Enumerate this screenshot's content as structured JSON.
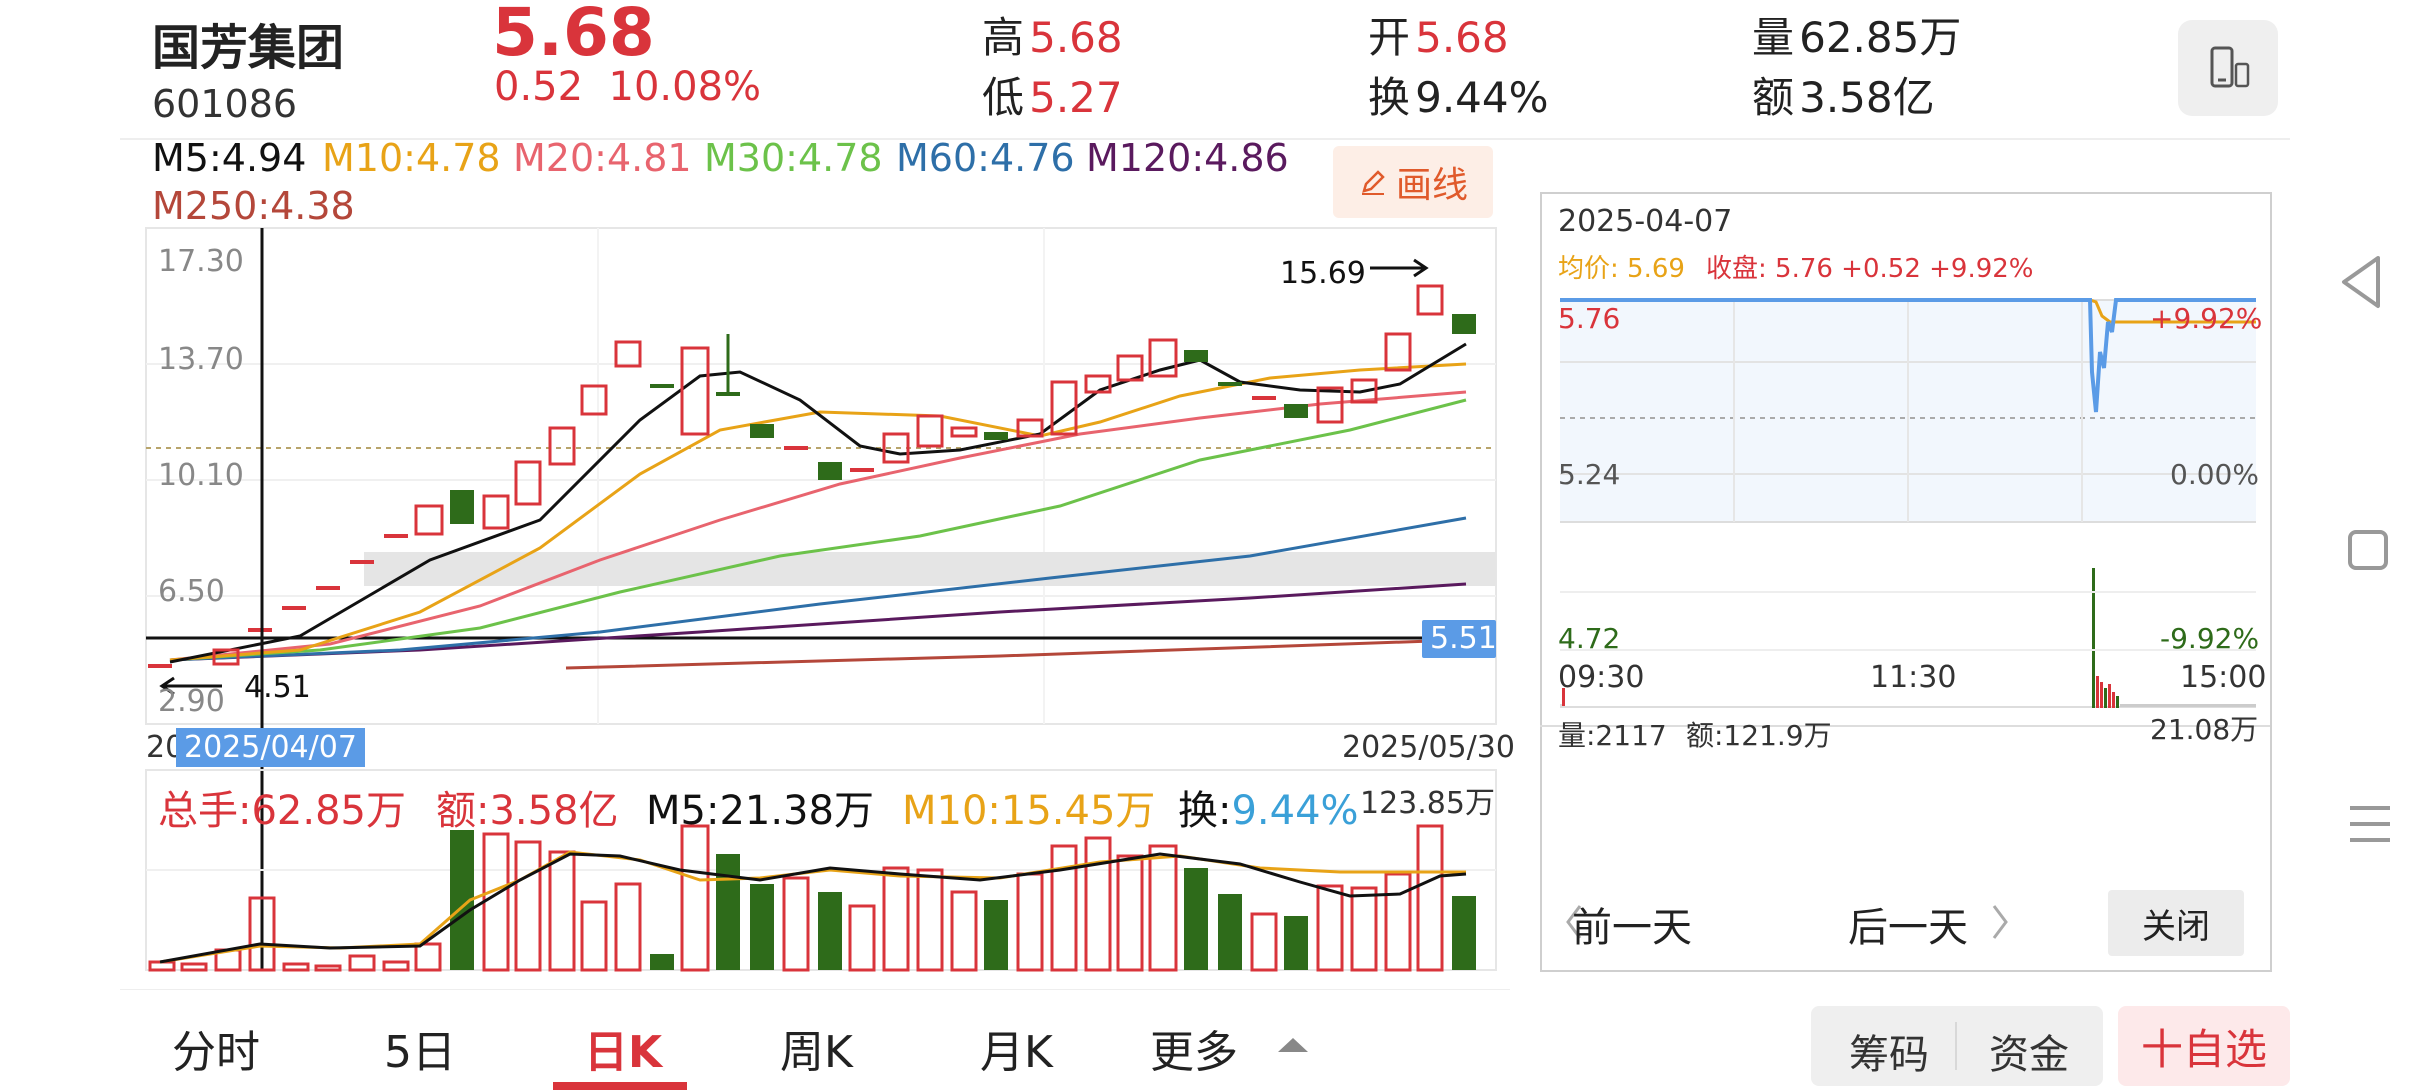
{
  "header": {
    "stock_name": "国芳集团",
    "stock_code": "601086",
    "price": "5.68",
    "change": "0.52",
    "change_pct": "10.08%",
    "high_label": "高",
    "high": "5.68",
    "low_label": "低",
    "low": "5.27",
    "open_label": "开",
    "open": "5.68",
    "turnover_label": "换",
    "turnover": "9.44%",
    "volume_label": "量",
    "volume": "62.85万",
    "amount_label": "额",
    "amount": "3.58亿"
  },
  "ma_legend": {
    "m5": "M5:4.94",
    "m10": "M10:4.78",
    "m20": "M20:4.81",
    "m30": "M30:4.78",
    "m60": "M60:4.76",
    "m120": "M120:4.86",
    "m250": "M250:4.38"
  },
  "colors": {
    "up": "#d9343b",
    "down": "#2e6b1a",
    "m5": "#111111",
    "m10": "#e8a317",
    "m20": "#e8646e",
    "m30": "#6cc24a",
    "m60": "#2e6fa8",
    "m120": "#5a1a5e",
    "m250": "#b4473a",
    "accent_blue": "#5b9be6"
  },
  "draw_button": "画线",
  "kline": {
    "y_ticks": [
      "17.30",
      "13.70",
      "10.10",
      "6.50",
      "2.90"
    ],
    "max_label": "15.69",
    "min_label": "4.51",
    "current_line_label": "5.51",
    "date_start": "20",
    "date_cursor": "2025/04/07",
    "date_end": "2025/05/30"
  },
  "volume": {
    "total": "总手:62.85万",
    "amount": "额:3.58亿",
    "m5": "M5:21.38万",
    "m10": "M10:15.45万",
    "turnover_prefix": "换:",
    "turnover": "9.44%",
    "max": "123.85万"
  },
  "intraday": {
    "date": "2025-04-07",
    "avg_label": "均价: 5.69",
    "close_label": "收盘: 5.76 +0.52 +9.92%",
    "y_top": "5.76",
    "y_mid": "5.24",
    "y_bot": "4.72",
    "pct_top": "+9.92%",
    "pct_mid": "0.00%",
    "pct_bot": "-9.92%",
    "t_start": "09:30",
    "t_mid": "11:30",
    "t_end": "15:00",
    "vol_label": "量:2117",
    "amt_label": "额:121.9万",
    "vol_max": "21.08万",
    "prev_day": "前一天",
    "next_day": "后一天",
    "close_button": "关闭"
  },
  "tabs": [
    "分时",
    "5日",
    "日K",
    "周K",
    "月K",
    "更多"
  ],
  "buttons": {
    "chips": "筹码",
    "funds": "资金",
    "add_watch": "十自选"
  },
  "icons": [
    "phone-icon",
    "pen-icon",
    "chevron-left-icon",
    "chevron-right-icon",
    "triangle-up-icon",
    "nav-back-icon",
    "nav-home-icon",
    "nav-menu-icon"
  ]
}
